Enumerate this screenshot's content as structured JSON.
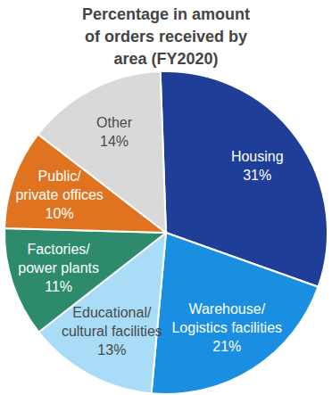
{
  "chart_data": {
    "type": "pie",
    "title": "Percentage in amount of orders received by area (FY2020)",
    "categories": [
      "Housing",
      "Warehouse/Logistics facilities",
      "Educational/cultural facilities",
      "Factories/power plants",
      "Public/private offices",
      "Other"
    ],
    "values": [
      31,
      21,
      13,
      11,
      10,
      14
    ],
    "value_labels": [
      "31%",
      "21%",
      "13%",
      "11%",
      "10%",
      "14%"
    ],
    "colors": [
      "#1f3e97",
      "#1a8ee0",
      "#a8dcf7",
      "#2e8a6c",
      "#e0731f",
      "#d9d9d9"
    ],
    "data_labels": true
  }
}
